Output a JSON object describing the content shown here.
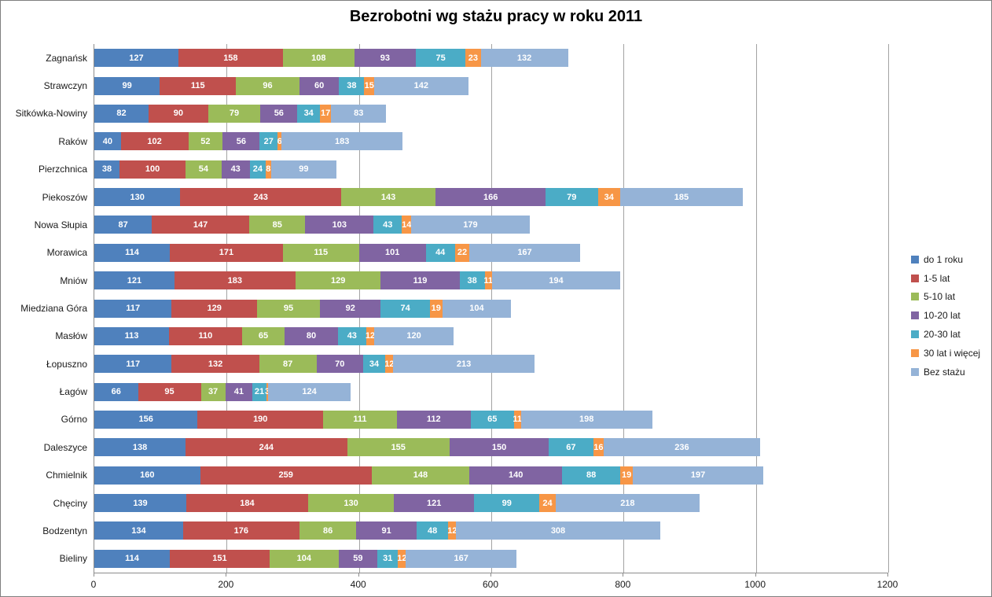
{
  "chart_data": {
    "type": "bar",
    "orientation": "horizontal",
    "stacked": true,
    "title": "Bezrobotni wg stażu pracy w roku 2011",
    "xlabel": "",
    "ylabel": "",
    "xlim": [
      0,
      1200
    ],
    "x_ticks": [
      0,
      200,
      400,
      600,
      800,
      1000,
      1200
    ],
    "grid": "vertical",
    "legend_position": "right",
    "data_labels": "white-bold-centered",
    "categories": [
      "Zagnańsk",
      "Strawczyn",
      "Sitkówka-Nowiny",
      "Raków",
      "Pierzchnica",
      "Piekoszów",
      "Nowa Słupia",
      "Morawica",
      "Mniów",
      "Miedziana Góra",
      "Masłów",
      "Łopuszno",
      "Łagów",
      "Górno",
      "Daleszyce",
      "Chmielnik",
      "Chęciny",
      "Bodzentyn",
      "Bieliny"
    ],
    "series": [
      {
        "name": "do 1 roku",
        "color": "#4F81BD",
        "values": [
          127,
          99,
          82,
          40,
          38,
          130,
          87,
          114,
          121,
          117,
          113,
          117,
          66,
          156,
          138,
          160,
          139,
          134,
          114
        ]
      },
      {
        "name": "1-5 lat",
        "color": "#C0504D",
        "values": [
          158,
          115,
          90,
          102,
          100,
          243,
          147,
          171,
          183,
          129,
          110,
          132,
          95,
          190,
          244,
          259,
          184,
          176,
          151
        ]
      },
      {
        "name": "5-10 lat",
        "color": "#9BBB59",
        "values": [
          108,
          96,
          79,
          52,
          54,
          143,
          85,
          115,
          129,
          95,
          65,
          87,
          37,
          111,
          155,
          148,
          130,
          86,
          104
        ]
      },
      {
        "name": "10-20 lat",
        "color": "#8064A2",
        "values": [
          93,
          60,
          56,
          56,
          43,
          166,
          103,
          101,
          119,
          92,
          80,
          70,
          41,
          112,
          150,
          140,
          121,
          91,
          59
        ]
      },
      {
        "name": "20-30 lat",
        "color": "#4BACC6",
        "values": [
          75,
          38,
          34,
          27,
          24,
          79,
          43,
          44,
          38,
          74,
          43,
          34,
          21,
          65,
          67,
          88,
          99,
          48,
          31
        ]
      },
      {
        "name": "30 lat i więcej",
        "color": "#F79646",
        "values": [
          23,
          15,
          17,
          6,
          8,
          34,
          14,
          22,
          11,
          19,
          12,
          12,
          3,
          11,
          16,
          19,
          24,
          12,
          12
        ]
      },
      {
        "name": "Bez stażu",
        "color": "#95B3D7",
        "values": [
          132,
          142,
          83,
          183,
          99,
          185,
          179,
          167,
          194,
          104,
          120,
          213,
          124,
          198,
          236,
          197,
          218,
          308,
          167
        ]
      }
    ]
  }
}
